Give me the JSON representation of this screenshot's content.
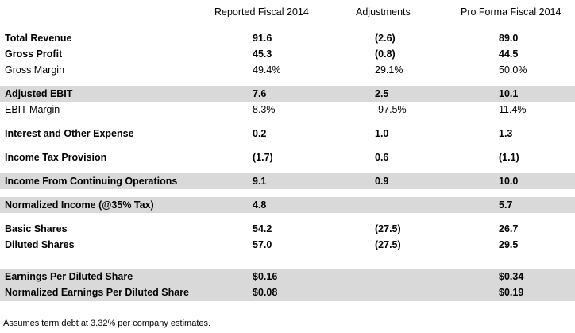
{
  "headers": [
    "Reported Fiscal 2014",
    "Adjustments",
    "Pro Forma Fiscal 2014"
  ],
  "rows": [
    {
      "label": "Total Revenue",
      "reported": "91.6",
      "adjustments": "(2.6)",
      "pro_forma": "89.0"
    },
    {
      "label": "Gross Profit",
      "reported": "45.3",
      "adjustments": "(0.8)",
      "pro_forma": "44.5"
    },
    {
      "label": "Gross Margin",
      "reported": "49.4%",
      "adjustments": "29.1%",
      "pro_forma": "50.0%"
    },
    {
      "label": "Adjusted EBIT",
      "reported": "7.6",
      "adjustments": "2.5",
      "pro_forma": "10.1"
    },
    {
      "label": "EBIT Margin",
      "reported": "8.3%",
      "adjustments": "-97.5%",
      "pro_forma": "11.4%"
    },
    {
      "label": "Interest and Other Expense",
      "reported": "0.2",
      "adjustments": "1.0",
      "pro_forma": "1.3"
    },
    {
      "label": "Income Tax Provision",
      "reported": "(1.7)",
      "adjustments": "0.6",
      "pro_forma": "(1.1)"
    },
    {
      "label": "Income From Continuing Operations",
      "reported": "9.1",
      "adjustments": "0.9",
      "pro_forma": "10.0"
    },
    {
      "label": "Normalized Income (@35% Tax)",
      "reported": "4.8",
      "adjustments": "",
      "pro_forma": "5.7"
    },
    {
      "label": "Basic Shares",
      "reported": "54.2",
      "adjustments": "(27.5)",
      "pro_forma": "26.7"
    },
    {
      "label": "Diluted Shares",
      "reported": "57.0",
      "adjustments": "(27.5)",
      "pro_forma": "29.5"
    },
    {
      "label": "Earnings Per Diluted Share",
      "reported": "$0.16",
      "adjustments": "",
      "pro_forma": "$0.34"
    },
    {
      "label": "Normalized Earnings Per Diluted Share",
      "reported": "$0.08",
      "adjustments": "",
      "pro_forma": "$0.19"
    }
  ],
  "footnote": "Assumes term debt at 3.32% per company estimates."
}
